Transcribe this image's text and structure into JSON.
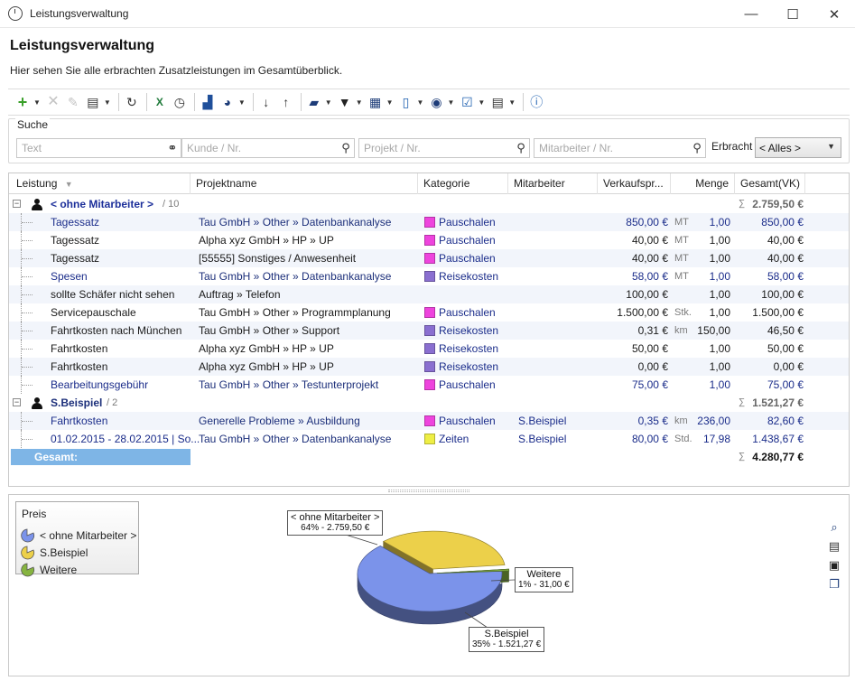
{
  "window": {
    "title": "Leistungsverwaltung",
    "minimize_glyph": "—",
    "maximize_glyph": "☐",
    "close_glyph": "✕"
  },
  "header": {
    "title": "Leistungsverwaltung",
    "subtitle": "Hier sehen Sie alle erbrachten Zusatzleistungen im Gesamtüberblick."
  },
  "toolbar": {
    "icons": [
      "add-icon",
      "delete-icon",
      "edit-icon",
      "print-icon",
      "refresh-icon",
      "excel-export-icon",
      "clock-icon",
      "stack-icon",
      "pie-chart-icon",
      "sort-asc-icon",
      "sort-desc-icon",
      "folder-icon",
      "filter-icon",
      "layout-icon",
      "calculator-icon",
      "eye-icon",
      "checklist-icon",
      "table-icon",
      "help-icon"
    ]
  },
  "search": {
    "legend": "Suche",
    "text_placeholder": "Text",
    "kunde_placeholder": "Kunde / Nr.",
    "projekt_placeholder": "Projekt / Nr.",
    "mitarbeiter_placeholder": "Mitarbeiter / Nr.",
    "erbracht_label": "Erbracht",
    "erbracht_value": "< Alles >"
  },
  "grid": {
    "columns": {
      "leistung": "Leistung",
      "projektname": "Projektname",
      "kategorie": "Kategorie",
      "mitarbeiter": "Mitarbeiter",
      "verkaufspreis": "Verkaufspr...",
      "menge": "Menge",
      "gesamt": "Gesamt(VK)"
    },
    "groups": [
      {
        "name": "< ohne Mitarbeiter >",
        "count": "/ 10",
        "sum": "2.759,50 €",
        "rows": [
          {
            "leistung": "Tagessatz",
            "projekt": "Tau GmbH » Other » Datenbankanalyse",
            "kategorie": "Pauschalen",
            "mitarbeiter": "",
            "vk": "850,00 €",
            "unit": "MT",
            "menge": "1,00",
            "gesamt": "850,00 €",
            "blue": true
          },
          {
            "leistung": "Tagessatz",
            "projekt": "Alpha xyz GmbH » HP » UP",
            "kategorie": "Pauschalen",
            "mitarbeiter": "",
            "vk": "40,00 €",
            "unit": "MT",
            "menge": "1,00",
            "gesamt": "40,00 €",
            "blue": false
          },
          {
            "leistung": "Tagessatz",
            "projekt": "[55555] Sonstiges / Anwesenheit",
            "kategorie": "Pauschalen",
            "mitarbeiter": "",
            "vk": "40,00 €",
            "unit": "MT",
            "menge": "1,00",
            "gesamt": "40,00 €",
            "blue": false
          },
          {
            "leistung": "Spesen",
            "projekt": "Tau GmbH » Other » Datenbankanalyse",
            "kategorie": "Reisekosten",
            "mitarbeiter": "",
            "vk": "58,00 €",
            "unit": "MT",
            "menge": "1,00",
            "gesamt": "58,00 €",
            "blue": true
          },
          {
            "leistung": "sollte Schäfer nicht sehen",
            "projekt": "Auftrag » Telefon",
            "kategorie": "",
            "mitarbeiter": "",
            "vk": "100,00 €",
            "unit": "",
            "menge": "1,00",
            "gesamt": "100,00 €",
            "blue": false
          },
          {
            "leistung": "Servicepauschale",
            "projekt": "Tau GmbH » Other » Programmplanung",
            "kategorie": "Pauschalen",
            "mitarbeiter": "",
            "vk": "1.500,00 €",
            "unit": "Stk.",
            "menge": "1,00",
            "gesamt": "1.500,00 €",
            "blue": false
          },
          {
            "leistung": "Fahrtkosten nach München",
            "projekt": "Tau GmbH » Other » Support",
            "kategorie": "Reisekosten",
            "mitarbeiter": "",
            "vk": "0,31 €",
            "unit": "km",
            "menge": "150,00",
            "gesamt": "46,50 €",
            "blue": false
          },
          {
            "leistung": "Fahrtkosten",
            "projekt": "Alpha xyz GmbH » HP » UP",
            "kategorie": "Reisekosten",
            "mitarbeiter": "",
            "vk": "50,00 €",
            "unit": "",
            "menge": "1,00",
            "gesamt": "50,00 €",
            "blue": false
          },
          {
            "leistung": "Fahrtkosten",
            "projekt": "Alpha xyz GmbH » HP » UP",
            "kategorie": "Reisekosten",
            "mitarbeiter": "",
            "vk": "0,00 €",
            "unit": "",
            "menge": "1,00",
            "gesamt": "0,00 €",
            "blue": false
          },
          {
            "leistung": "Bearbeitungsgebühr",
            "projekt": "Tau GmbH » Other » Testunterprojekt",
            "kategorie": "Pauschalen",
            "mitarbeiter": "",
            "vk": "75,00 €",
            "unit": "",
            "menge": "1,00",
            "gesamt": "75,00 €",
            "blue": true
          }
        ]
      },
      {
        "name": "S.Beispiel",
        "count": "/ 2",
        "sum": "1.521,27 €",
        "rows": [
          {
            "leistung": "Fahrtkosten",
            "projekt": "Generelle Probleme » Ausbildung",
            "kategorie": "Pauschalen",
            "mitarbeiter": "S.Beispiel",
            "vk": "0,35 €",
            "unit": "km",
            "menge": "236,00",
            "gesamt": "82,60 €",
            "blue": true
          },
          {
            "leistung": "01.02.2015 - 28.02.2015 | So...",
            "projekt": "Tau GmbH » Other » Datenbankanalyse",
            "kategorie": "Zeiten",
            "mitarbeiter": "S.Beispiel",
            "vk": "80,00 €",
            "unit": "Std.",
            "menge": "17,98",
            "gesamt": "1.438,67 €",
            "blue": true
          }
        ]
      }
    ],
    "total_label": "Gesamt:",
    "total_sum": "4.280,77 €",
    "sigma": "∑"
  },
  "category_colors": {
    "Pauschalen": "#ee44dd",
    "Reisekosten": "#8a6fd0",
    "Zeiten": "#eeee44"
  },
  "chart_data": {
    "type": "pie",
    "title": "Preis",
    "slices": [
      {
        "name": "< ohne Mitarbeiter >",
        "value": 2759.5,
        "percent": 64,
        "label": "64% - 2.759,50 €",
        "color": "#7b93ea"
      },
      {
        "name": "S.Beispiel",
        "value": 1521.27,
        "percent": 35,
        "label": "35% - 1.521,27 €",
        "color": "#ecd04a"
      },
      {
        "name": "Weitere",
        "value": 31.0,
        "percent": 1,
        "label": "1% - 31,00 €",
        "color": "#86b440"
      }
    ],
    "legend_position": "top-left"
  }
}
